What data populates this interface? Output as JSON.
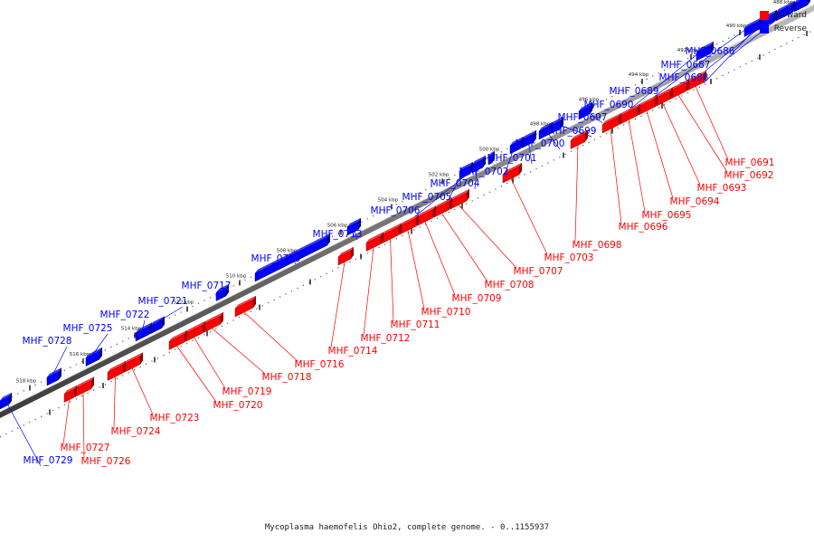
{
  "legend": {
    "forward_label": "Forward",
    "reverse_label": "Reverse",
    "forward_color": "#ff0000",
    "reverse_color": "#0000ff"
  },
  "footer": {
    "caption": "Mycoplasma haemofelis Ohio2, complete genome. - 0..1155937"
  },
  "kbp_ticks": [
    "488 kbp",
    "490 kbp",
    "492 kbp",
    "494 kbp",
    "496 kbp",
    "498 kbp",
    "500 kbp",
    "502 kbp",
    "504 kbp",
    "506 kbp",
    "508 kbp",
    "510 kbp",
    "512 kbp",
    "514 kbp",
    "516 kbp",
    "518 kbp"
  ],
  "reverse_genes": [
    "MHF_0686",
    "MHF_0687",
    "MHF_0688",
    "MHF_0689",
    "MHF_0690",
    "MHF_0697",
    "MHF_0699",
    "MHF_0700",
    "MHF_0701",
    "MHF_0702",
    "MHF_0704",
    "MHF_0705",
    "MHF_0706",
    "MHF_0713",
    "MHF_0715",
    "MHF_0717",
    "MHF_0721",
    "MHF_0722",
    "MHF_0725",
    "MHF_0728",
    "MHF_0729"
  ],
  "forward_genes": [
    "MHF_0691",
    "MHF_0692",
    "MHF_0693",
    "MHF_0694",
    "MHF_0695",
    "MHF_0696",
    "MHF_0698",
    "MHF_0703",
    "MHF_0707",
    "MHF_0708",
    "MHF_0709",
    "MHF_0710",
    "MHF_0711",
    "MHF_0712",
    "MHF_0714",
    "MHF_0716",
    "MHF_0718",
    "MHF_0719",
    "MHF_0720",
    "MHF_0723",
    "MHF_0724",
    "MHF_0726",
    "MHF_0727"
  ]
}
